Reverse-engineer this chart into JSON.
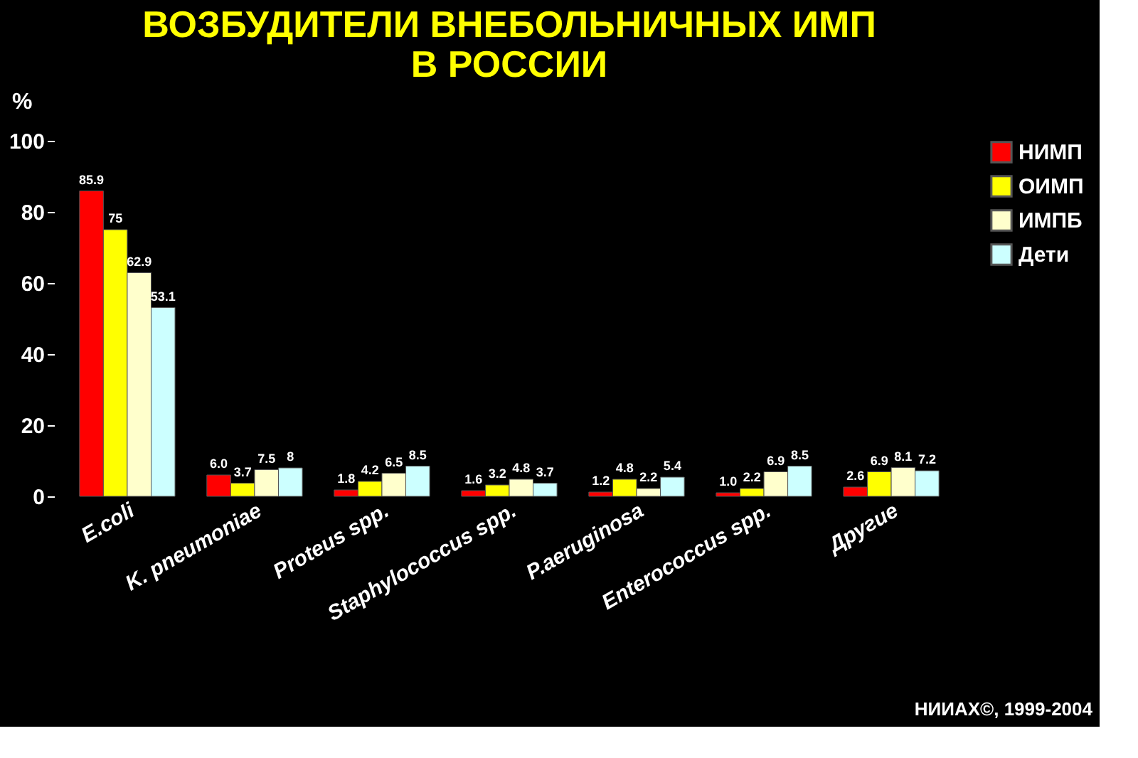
{
  "chart_data": {
    "type": "bar",
    "title": [
      "ВОЗБУДИТЕЛИ ВНЕБОЛЬНИЧНЫХ ИМП",
      "В РОССИИ"
    ],
    "ylabel": "%",
    "categories": [
      "E.coli",
      "K. pneumoniae",
      "Proteus spp.",
      "Staphylococcus spp.",
      "P.aeruginosa",
      "Enterococcus spp.",
      "Другие"
    ],
    "series": [
      {
        "name": "НИМП",
        "color": "#ff0000",
        "values": [
          85.9,
          6.0,
          1.8,
          1.6,
          1.2,
          1.0,
          2.6
        ],
        "value_labels": [
          "85.9",
          "6.0",
          "1.8",
          "1.6",
          "1.2",
          "1.0",
          "2.6"
        ]
      },
      {
        "name": "ОИМП",
        "color": "#ffff00",
        "values": [
          75,
          3.7,
          4.2,
          3.2,
          4.8,
          2.2,
          6.9
        ],
        "value_labels": [
          "75",
          "3.7",
          "4.2",
          "3.2",
          "4.8",
          "2.2",
          "6.9"
        ]
      },
      {
        "name": "ИМПБ",
        "color": "#ffffcc",
        "values": [
          62.9,
          7.5,
          6.5,
          4.8,
          2.2,
          6.9,
          8.1
        ],
        "value_labels": [
          "62.9",
          "7.5",
          "6.5",
          "4.8",
          "2.2",
          "6.9",
          "8.1"
        ]
      },
      {
        "name": "Дети",
        "color": "#ccffff",
        "values": [
          53.1,
          8,
          8.5,
          3.7,
          5.4,
          8.5,
          7.2
        ],
        "value_labels": [
          "53.1",
          "8",
          "8.5",
          "3.7",
          "5.4",
          "8.5",
          "7.2"
        ]
      }
    ],
    "ylim": [
      0,
      100
    ],
    "yticks": [
      0,
      20,
      40,
      60,
      80,
      100
    ],
    "grid": false,
    "legend": "right",
    "annotations": [
      "НИИАХ©, 1999-2004"
    ]
  }
}
